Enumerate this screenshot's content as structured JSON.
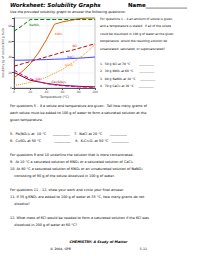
{
  "chart_data": {
    "type": "line",
    "title": "Worksheet: Solubility Graphs",
    "name_label": "Name_______________",
    "subtitle": "Use the provided solubility graph to answer the following questions:",
    "xlabel": "Temperature (°C)",
    "ylabel": "Solubility (g of solute/100 g H₂O)",
    "xlim": [
      0,
      100
    ],
    "ylim": [
      0,
      90
    ],
    "xticks": [
      0,
      20,
      40,
      60,
      80,
      100
    ],
    "yticks": [
      0,
      20,
      40,
      60,
      80
    ],
    "grid": true,
    "x": [
      0,
      10,
      20,
      30,
      40,
      50,
      60,
      70,
      80,
      90,
      100
    ],
    "series": [
      {
        "name": "KNO₃",
        "color": "#e06000",
        "line_style": "solid",
        "label_x": 55,
        "label_y": 68,
        "values": [
          13,
          21,
          31,
          45,
          62,
          82,
          85,
          87,
          89,
          90,
          90
        ]
      },
      {
        "name": "KCl",
        "color": "#cc0000",
        "line_style": "dashed",
        "label_x": 75,
        "label_y": 52,
        "values": [
          28,
          31,
          34,
          37,
          40,
          43,
          46,
          48,
          51,
          54,
          57
        ]
      },
      {
        "name": "NaCl",
        "color": "#4444ff",
        "line_style": "solid",
        "label_x": 70,
        "label_y": 38,
        "values": [
          35.7,
          35.8,
          36.0,
          36.3,
          36.6,
          37.0,
          37.3,
          37.8,
          38.4,
          39.0,
          39.8
        ]
      },
      {
        "name": "NaNO₃",
        "color": "#007700",
        "line_style": "dashed",
        "label_x": 25,
        "label_y": 80,
        "values": [
          73,
          80,
          88,
          88,
          88,
          88,
          88,
          88,
          88,
          88,
          88
        ]
      },
      {
        "name": "KClO₃",
        "color": "#ff8800",
        "line_style": "dotted",
        "label_x": 68,
        "label_y": 28,
        "values": [
          3.3,
          5,
          7.3,
          10,
          14,
          19,
          24,
          31,
          38,
          46,
          56
        ]
      },
      {
        "name": "Ce₂(SO₄)₃",
        "color": "#880000",
        "line_style": "solid",
        "label_x": 55,
        "label_y": 6,
        "values": [
          20,
          15,
          10,
          8,
          6,
          4.5,
          3.5,
          2.8,
          2.2,
          1.8,
          1.5
        ]
      },
      {
        "name": "SO₂",
        "color": "#cc00cc",
        "line_style": "dashed",
        "label_x": 30,
        "label_y": 10,
        "values": [
          23,
          17,
          12,
          8,
          5.7,
          4,
          2.9,
          2.1,
          1.5,
          1.1,
          0.8
        ]
      }
    ],
    "right_block": [
      [
        "For questions 1 – 4 an amount of solute is given,",
        "and a temperature is stated.  If all of the solute",
        "could be dissolved in 100 g of water at the given",
        "temperature, would the resulting solution be",
        "unsaturated, saturated, or supersaturated?"
      ],
      [
        "1.  50 g KCl at 70 °C         __________",
        "2.  30 g KNO₃ at 60 °C      __________",
        "3.  80 g NaNO₃ at 10 °C     __________",
        "4.  70 g CaCl₂ at 30 °C     __________"
      ]
    ],
    "bottom_block": [
      [
        "For questions 5 – 8 a solute and temperature are given.  Tell how many grams of",
        "each solute must be added to 100 g of water to form a saturated solution at the",
        "given temperature."
      ],
      [
        "5.  Pb(NO₃)₂ at  10 °C      __________    7.  NaCl at 20 °C       __________",
        "6.  CuSO₄ at 50 °C            __________    8.  K₂Cr₂O₇ at 50 °C   __________"
      ],
      [
        "For questions 9 and 10 underline the solution that is more concentrated.",
        "9.  At 10 °C a saturated solution of KNO₃ or a saturated solution of CaCl₂",
        "10. At 80 °C a saturated solution of KNO₃ or an unsaturated solution of NaNO₃",
        "    consisting of 90 g of the solute dissolved in 100 g of water."
      ],
      [
        "For questions 11 – 12, show your work and circle your final answer.",
        "11. If 35 g KNO₃ are added to 100 g of water at 35 °C, how many grams do not",
        "    dissolve?"
      ],
      [
        "12. What mass of KCl would be needed to form a saturated solution if the KCl was",
        "    dissolved in 200 g of water at 60 °C?"
      ]
    ],
    "footer": [
      "CHEMISTRY: A Study of Matter",
      "© 2004, GPB                                                                    5.11"
    ]
  }
}
